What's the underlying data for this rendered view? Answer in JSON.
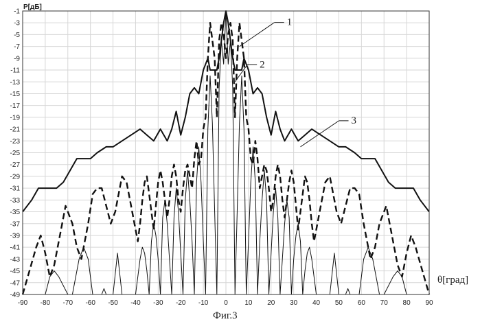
{
  "chart_data": {
    "type": "line",
    "ylabel": "P[дБ]",
    "xlabel": "θ[град]",
    "caption": "Фиг.3",
    "xlim": [
      -90,
      90
    ],
    "ylim": [
      -49,
      -1
    ],
    "grid": true,
    "x_ticks": [
      -90,
      -80,
      -70,
      -60,
      -50,
      -40,
      -30,
      -20,
      -10,
      0,
      10,
      20,
      30,
      40,
      50,
      60,
      70,
      80,
      90
    ],
    "y_ticks": [
      -1,
      -3,
      -5,
      -7,
      -9,
      -11,
      -13,
      -15,
      -17,
      -19,
      -21,
      -23,
      -25,
      -27,
      -29,
      -31,
      -33,
      -35,
      -37,
      -39,
      -41,
      -43,
      -45,
      -47,
      -49
    ],
    "series": [
      {
        "name": "1",
        "style": "thin",
        "x": [
          -90,
          -85,
          -80,
          -78,
          -76,
          -74,
          -70,
          -68,
          -65,
          -63,
          -61,
          -59,
          -55,
          -54,
          -53,
          -50,
          -48,
          -46,
          -40,
          -38,
          -37,
          -36,
          -35,
          -34,
          -33,
          -32,
          -31,
          -30,
          -29,
          -28,
          -27,
          -26,
          -25,
          -24,
          -23,
          -22,
          -21,
          -20,
          -19,
          -18,
          -17,
          -16,
          -15,
          -14,
          -13,
          -12,
          -11,
          -10,
          -9,
          -8,
          -7,
          -6,
          -5,
          -4,
          -3,
          -2,
          -1,
          0,
          1,
          2,
          3,
          4,
          5,
          6,
          7,
          8,
          9,
          10,
          11,
          12,
          13,
          14,
          15,
          16,
          17,
          18,
          19,
          20,
          21,
          22,
          23,
          24,
          25,
          26,
          27,
          28,
          29,
          30,
          31,
          32,
          33,
          34,
          35,
          36,
          37,
          38,
          40,
          46,
          48,
          50,
          53,
          54,
          55,
          59,
          61,
          63,
          65,
          68,
          70,
          74,
          76,
          78,
          80,
          85,
          90
        ],
        "values": [
          -49,
          -49,
          -49,
          -46,
          -45,
          -46,
          -49,
          -49,
          -43,
          -41,
          -43,
          -49,
          -49,
          -48,
          -49,
          -49,
          -42,
          -49,
          -49,
          -43,
          -41,
          -42,
          -45,
          -49,
          -40,
          -37,
          -39,
          -43,
          -49,
          -36,
          -33,
          -37,
          -43,
          -49,
          -36,
          -31,
          -35,
          -42,
          -49,
          -33,
          -28,
          -33,
          -40,
          -49,
          -30,
          -24,
          -30,
          -40,
          -49,
          -21,
          -12,
          -20,
          -35,
          -49,
          -14,
          -6,
          -10,
          -1,
          -10,
          -6,
          -14,
          -49,
          -35,
          -20,
          -12,
          -21,
          -49,
          -40,
          -30,
          -24,
          -30,
          -49,
          -40,
          -33,
          -28,
          -33,
          -49,
          -42,
          -35,
          -31,
          -36,
          -49,
          -43,
          -37,
          -33,
          -36,
          -49,
          -43,
          -39,
          -37,
          -40,
          -49,
          -45,
          -42,
          -41,
          -43,
          -49,
          -49,
          -42,
          -49,
          -49,
          -48,
          -49,
          -49,
          -43,
          -41,
          -43,
          -49,
          -49,
          -46,
          -45,
          -46,
          -49,
          -49,
          -49
        ]
      },
      {
        "name": "2",
        "style": "dashed",
        "x": [
          -90,
          -87,
          -84,
          -82,
          -80,
          -78,
          -76,
          -73,
          -71,
          -68,
          -66,
          -64,
          -61,
          -59,
          -57,
          -55,
          -53,
          -51,
          -49,
          -47,
          -46,
          -44,
          -42,
          -40,
          -39,
          -38,
          -37,
          -36,
          -35,
          -34,
          -33,
          -32,
          -31,
          -30,
          -29,
          -28,
          -27,
          -26,
          -25,
          -24,
          -23,
          -22,
          -21,
          -20,
          -19,
          -18,
          -17,
          -16,
          -15,
          -14,
          -13,
          -12,
          -11,
          -10,
          -9,
          -8,
          -7,
          -6,
          -5,
          -4,
          -3,
          -2,
          -1,
          0,
          1,
          2,
          3,
          4,
          5,
          6,
          7,
          8,
          9,
          10,
          11,
          12,
          13,
          14,
          15,
          16,
          17,
          18,
          19,
          20,
          21,
          22,
          23,
          24,
          25,
          26,
          27,
          28,
          29,
          30,
          31,
          32,
          33,
          34,
          35,
          36,
          37,
          38,
          39,
          40,
          42,
          44,
          46,
          47,
          49,
          51,
          53,
          55,
          57,
          59,
          61,
          64,
          66,
          68,
          71,
          73,
          76,
          78,
          80,
          82,
          84,
          87,
          90
        ],
        "values": [
          -49,
          -45,
          -41,
          -39,
          -42,
          -46,
          -44,
          -38,
          -34,
          -37,
          -41,
          -43,
          -37,
          -32,
          -31,
          -31,
          -34,
          -37,
          -35,
          -31,
          -29,
          -30,
          -34,
          -38,
          -40,
          -37,
          -33,
          -30,
          -29,
          -32,
          -35,
          -38,
          -34,
          -30,
          -28,
          -30,
          -33,
          -36,
          -33,
          -29,
          -27,
          -29,
          -33,
          -35,
          -31,
          -28,
          -27,
          -29,
          -31,
          -26,
          -23,
          -27,
          -26,
          -21,
          -19,
          -9,
          -3,
          -6,
          -9,
          -19,
          -6,
          -3,
          -5,
          -9,
          -5,
          -3,
          -6,
          -19,
          -9,
          -3,
          -6,
          -9,
          -19,
          -21,
          -26,
          -27,
          -23,
          -26,
          -31,
          -29,
          -27,
          -28,
          -31,
          -35,
          -33,
          -29,
          -27,
          -29,
          -33,
          -36,
          -33,
          -30,
          -28,
          -30,
          -34,
          -38,
          -35,
          -32,
          -29,
          -30,
          -33,
          -37,
          -40,
          -38,
          -34,
          -30,
          -29,
          -31,
          -35,
          -37,
          -34,
          -31,
          -31,
          -32,
          -37,
          -43,
          -41,
          -37,
          -34,
          -38,
          -44,
          -46,
          -42,
          -39,
          -41,
          -45,
          -49
        ]
      },
      {
        "name": "3",
        "style": "thick",
        "x": [
          -90,
          -86,
          -83,
          -80,
          -75,
          -72,
          -69,
          -66,
          -63,
          -60,
          -57,
          -53,
          -50,
          -46,
          -42,
          -38,
          -35,
          -32,
          -29,
          -26,
          -24,
          -22,
          -20,
          -18,
          -16,
          -14,
          -12,
          -10,
          -8,
          -7,
          -6,
          -5,
          -4,
          -3,
          -2,
          -1,
          0,
          1,
          2,
          3,
          4,
          5,
          6,
          7,
          8,
          10,
          12,
          14,
          16,
          18,
          20,
          22,
          24,
          26,
          29,
          32,
          35,
          38,
          42,
          46,
          50,
          53,
          57,
          60,
          63,
          66,
          69,
          72,
          75,
          80,
          83,
          86,
          90
        ],
        "values": [
          -35,
          -33,
          -31,
          -31,
          -31,
          -30,
          -28,
          -26,
          -26,
          -26,
          -25,
          -24,
          -24,
          -23,
          -22,
          -21,
          -22,
          -23,
          -21,
          -23,
          -21,
          -18,
          -22,
          -19,
          -15,
          -14,
          -15,
          -11,
          -9,
          -11,
          -11,
          -11,
          -11,
          -9,
          -6,
          -3,
          -1,
          -3,
          -6,
          -9,
          -11,
          -11,
          -11,
          -11,
          -9,
          -11,
          -15,
          -14,
          -15,
          -19,
          -22,
          -18,
          -21,
          -23,
          -21,
          -23,
          -22,
          -21,
          -22,
          -23,
          -24,
          -24,
          -25,
          -26,
          -26,
          -26,
          -28,
          -30,
          -31,
          -31,
          -31,
          -33,
          -35
        ]
      }
    ],
    "annotations": [
      {
        "label": "1",
        "target_series": "1"
      },
      {
        "label": "2",
        "target_series": "2"
      },
      {
        "label": "3",
        "target_series": "3"
      }
    ]
  }
}
